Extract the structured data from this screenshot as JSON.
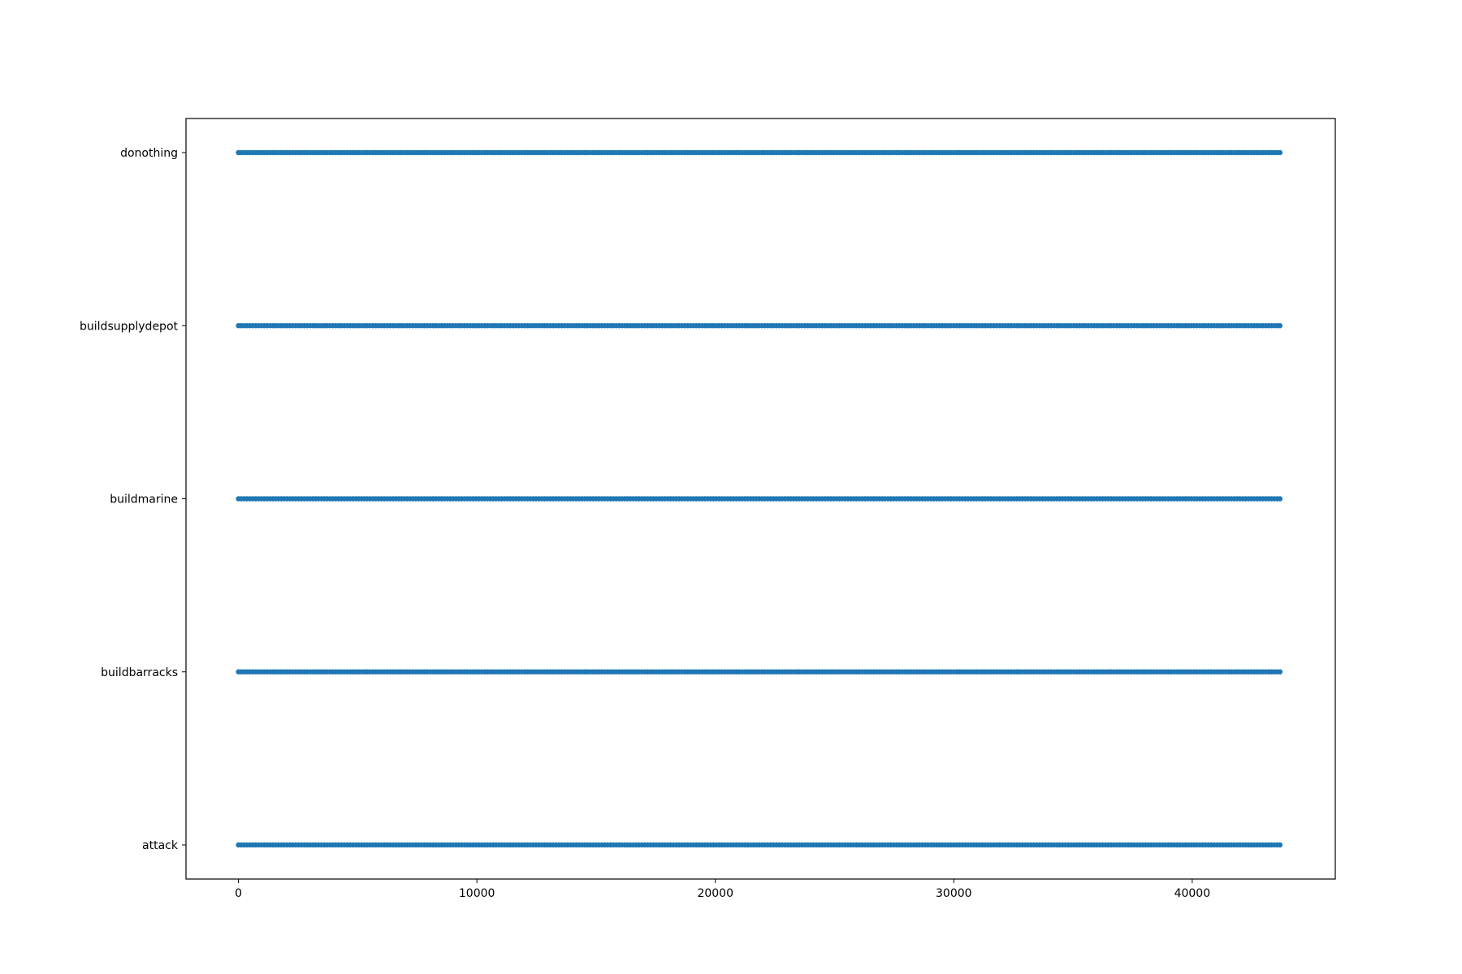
{
  "chart_data": {
    "type": "scatter",
    "title": "",
    "xlabel": "",
    "ylabel": "",
    "xlim": [
      -2200,
      46000
    ],
    "x_ticks": [
      0,
      10000,
      20000,
      30000,
      40000
    ],
    "x_tick_labels": [
      "0",
      "10000",
      "20000",
      "30000",
      "40000"
    ],
    "categories": [
      "attack",
      "buildbarracks",
      "buildmarine",
      "buildsupplydepot",
      "donothing"
    ],
    "x_range_per_category": [
      0,
      43700
    ],
    "grid": false,
    "legend": "none",
    "colors": {
      "points": "#1f77b4",
      "axes": "#000000",
      "background": "#ffffff"
    },
    "series": [
      {
        "category": "donothing",
        "x_min": 0,
        "x_max": 43700
      },
      {
        "category": "buildsupplydepot",
        "x_min": 0,
        "x_max": 43700
      },
      {
        "category": "buildmarine",
        "x_min": 0,
        "x_max": 43700
      },
      {
        "category": "buildbarracks",
        "x_min": 0,
        "x_max": 43700
      },
      {
        "category": "attack",
        "x_min": 0,
        "x_max": 43700
      }
    ]
  }
}
